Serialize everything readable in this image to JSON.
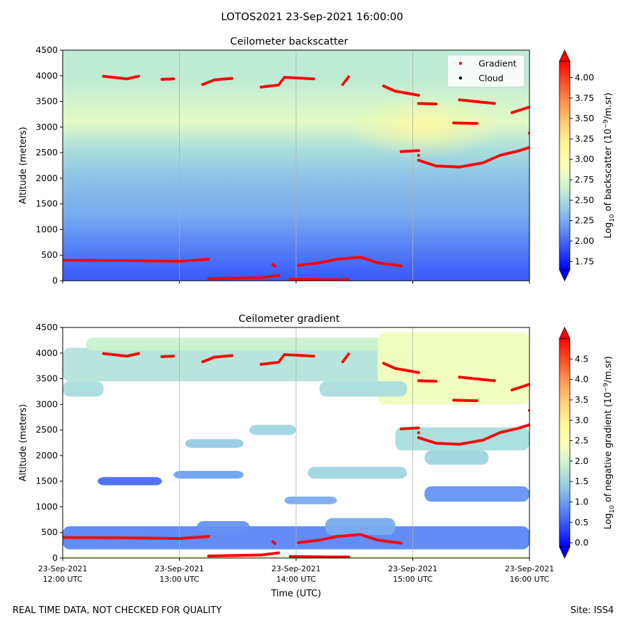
{
  "suptitle": "LOTOS2021 23-Sep-2021 16:00:00",
  "footer": {
    "left": "REAL TIME DATA, NOT CHECKED FOR QUALITY",
    "right": "Site: ISS4"
  },
  "chart_data": [
    {
      "type": "heatmap",
      "title": "Ceilometer backscatter",
      "ylabel": "Altitude (meters)",
      "ylim": [
        0,
        4500
      ],
      "yticks": [
        "0",
        "500",
        "1000",
        "1500",
        "2000",
        "2500",
        "3000",
        "3500",
        "4000",
        "4500"
      ],
      "xlim": [
        "12:00",
        "16:00"
      ],
      "grid": "vertical at hour ticks",
      "colormap": "rainbow",
      "colorbar": {
        "label": "Log10 of backscatter (10^-9/m.sr)",
        "range": [
          1.65,
          4.2
        ],
        "ticks": [
          "1.75",
          "2.00",
          "2.25",
          "2.50",
          "2.75",
          "3.00",
          "3.25",
          "3.50",
          "3.75",
          "4.00"
        ]
      },
      "legend": {
        "placement": "upper right",
        "entries": [
          {
            "label": "Gradient",
            "color": "#ff0000"
          },
          {
            "label": "Cloud",
            "color": "#000000"
          }
        ]
      },
      "field_bands": [
        {
          "from": 0,
          "to": 150,
          "value": 1.95
        },
        {
          "from": 150,
          "to": 900,
          "value": 2.05
        },
        {
          "from": 900,
          "to": 1700,
          "value": 2.25
        },
        {
          "from": 1700,
          "to": 2300,
          "value": 2.35
        },
        {
          "from": 2300,
          "to": 2800,
          "value": 2.5
        },
        {
          "from": 2800,
          "to": 3400,
          "value": 2.78
        },
        {
          "from": 3400,
          "to": 4500,
          "value": 2.6
        }
      ],
      "gradient_points": [
        {
          "name": "low layer",
          "points": [
            [
              12.0,
              400
            ],
            [
              12.5,
              395
            ],
            [
              13.0,
              380
            ],
            [
              13.25,
              420
            ]
          ]
        },
        {
          "name": "near-ground 1",
          "points": [
            [
              13.25,
              40
            ],
            [
              13.7,
              60
            ],
            [
              13.85,
              100
            ]
          ]
        },
        {
          "name": "near-ground 2",
          "points": [
            [
              13.8,
              320
            ],
            [
              13.82,
              280
            ]
          ]
        },
        {
          "name": "near-ground 3",
          "points": [
            [
              13.95,
              30
            ],
            [
              14.3,
              20
            ],
            [
              14.45,
              20
            ]
          ]
        },
        {
          "name": "rising layer",
          "points": [
            [
              14.02,
              300
            ],
            [
              14.2,
              350
            ],
            [
              14.35,
              420
            ],
            [
              14.55,
              460
            ],
            [
              14.7,
              350
            ],
            [
              14.9,
              290
            ]
          ]
        },
        {
          "name": "upper layer A",
          "points": [
            [
              12.35,
              3990
            ],
            [
              12.55,
              3940
            ],
            [
              12.65,
              3990
            ]
          ]
        },
        {
          "name": "upper layer B",
          "points": [
            [
              12.85,
              3930
            ],
            [
              12.95,
              3940
            ]
          ]
        },
        {
          "name": "upper layer C",
          "points": [
            [
              13.2,
              3830
            ],
            [
              13.3,
              3920
            ],
            [
              13.45,
              3950
            ]
          ]
        },
        {
          "name": "upper layer D",
          "points": [
            [
              13.7,
              3780
            ],
            [
              13.85,
              3820
            ],
            [
              13.9,
              3970
            ],
            [
              14.15,
              3940
            ]
          ]
        },
        {
          "name": "upper layer E",
          "points": [
            [
              14.4,
              3830
            ],
            [
              14.45,
              3980
            ]
          ]
        },
        {
          "name": "upper layer F",
          "points": [
            [
              14.75,
              3800
            ],
            [
              14.85,
              3700
            ],
            [
              15.05,
              3620
            ]
          ]
        },
        {
          "name": "upper layer G",
          "points": [
            [
              15.05,
              3460
            ],
            [
              15.2,
              3450
            ]
          ]
        },
        {
          "name": "upper layer H",
          "points": [
            [
              15.4,
              3530
            ],
            [
              15.7,
              3460
            ]
          ]
        },
        {
          "name": "mid layer",
          "points": [
            [
              15.35,
              3080
            ],
            [
              15.55,
              3070
            ]
          ]
        },
        {
          "name": "top right",
          "points": [
            [
              15.85,
              3280
            ],
            [
              16.0,
              3390
            ]
          ]
        },
        {
          "name": "descending layer",
          "points": [
            [
              14.9,
              2520
            ],
            [
              15.05,
              2540
            ],
            [
              15.05,
              2350
            ],
            [
              15.2,
              2240
            ],
            [
              15.4,
              2220
            ],
            [
              15.6,
              2300
            ],
            [
              15.75,
              2450
            ],
            [
              15.9,
              2530
            ],
            [
              16.0,
              2600
            ]
          ]
        },
        {
          "name": "edge point",
          "points": [
            [
              16.0,
              2880
            ]
          ]
        }
      ]
    },
    {
      "type": "heatmap",
      "title": "Ceilometer gradient",
      "ylabel": "Altitude (meters)",
      "xlabel": "Time (UTC)",
      "ylim": [
        0,
        4500
      ],
      "yticks": [
        "0",
        "500",
        "1000",
        "1500",
        "2000",
        "2500",
        "3000",
        "3500",
        "4000",
        "4500"
      ],
      "xticks": [
        {
          "line1": "23-Sep-2021",
          "line2": "12:00 UTC"
        },
        {
          "line1": "23-Sep-2021",
          "line2": "13:00 UTC"
        },
        {
          "line1": "23-Sep-2021",
          "line2": "14:00 UTC"
        },
        {
          "line1": "23-Sep-2021",
          "line2": "15:00 UTC"
        },
        {
          "line1": "23-Sep-2021",
          "line2": "16:00 UTC"
        }
      ],
      "xlim": [
        "12:00",
        "16:00"
      ],
      "grid": "vertical at hour ticks",
      "colormap": "rainbow",
      "colorbar": {
        "label": "Log10 of negative gradient (10^-9/m.sr)",
        "range": [
          -0.1,
          5.0
        ],
        "ticks": [
          "0.0",
          "0.5",
          "1.0",
          "1.5",
          "2.0",
          "2.5",
          "3.0",
          "3.5",
          "4.0",
          "4.5"
        ]
      },
      "regions": [
        {
          "t0": 12.0,
          "t1": 16.0,
          "a0": 0,
          "a1": 40,
          "value": 2.3
        },
        {
          "t0": 12.0,
          "t1": 16.0,
          "a0": 170,
          "a1": 620,
          "value": 0.8
        },
        {
          "t0": 13.15,
          "t1": 13.6,
          "a0": 500,
          "a1": 720,
          "value": 0.9
        },
        {
          "t0": 14.25,
          "t1": 14.85,
          "a0": 450,
          "a1": 780,
          "value": 1.1
        },
        {
          "t0": 12.0,
          "t1": 14.95,
          "a0": 3450,
          "a1": 4100,
          "value": 1.7
        },
        {
          "t0": 12.0,
          "t1": 12.35,
          "a0": 3150,
          "a1": 3450,
          "value": 1.6
        },
        {
          "t0": 12.2,
          "t1": 15.0,
          "a0": 4050,
          "a1": 4300,
          "value": 1.9
        },
        {
          "t0": 14.7,
          "t1": 16.0,
          "a0": 3000,
          "a1": 4400,
          "value": 2.3
        },
        {
          "t0": 14.2,
          "t1": 14.95,
          "a0": 3150,
          "a1": 3450,
          "value": 1.6
        },
        {
          "t0": 13.6,
          "t1": 14.0,
          "a0": 2400,
          "a1": 2600,
          "value": 1.5
        },
        {
          "t0": 13.05,
          "t1": 13.55,
          "a0": 2150,
          "a1": 2320,
          "value": 1.4
        },
        {
          "t0": 14.85,
          "t1": 16.0,
          "a0": 2100,
          "a1": 2550,
          "value": 1.6
        },
        {
          "t0": 14.1,
          "t1": 14.95,
          "a0": 1550,
          "a1": 1780,
          "value": 1.5
        },
        {
          "t0": 15.1,
          "t1": 15.65,
          "a0": 1820,
          "a1": 2100,
          "value": 1.5
        },
        {
          "t0": 12.3,
          "t1": 12.85,
          "a0": 1420,
          "a1": 1580,
          "value": 0.6
        },
        {
          "t0": 12.95,
          "t1": 13.55,
          "a0": 1550,
          "a1": 1700,
          "value": 1.0
        },
        {
          "t0": 13.9,
          "t1": 14.35,
          "a0": 1050,
          "a1": 1200,
          "value": 1.1
        },
        {
          "t0": 15.1,
          "t1": 16.0,
          "a0": 1100,
          "a1": 1400,
          "value": 0.9
        }
      ],
      "gradient_points_ref": "same as Ceilometer backscatter gradient_points"
    }
  ]
}
